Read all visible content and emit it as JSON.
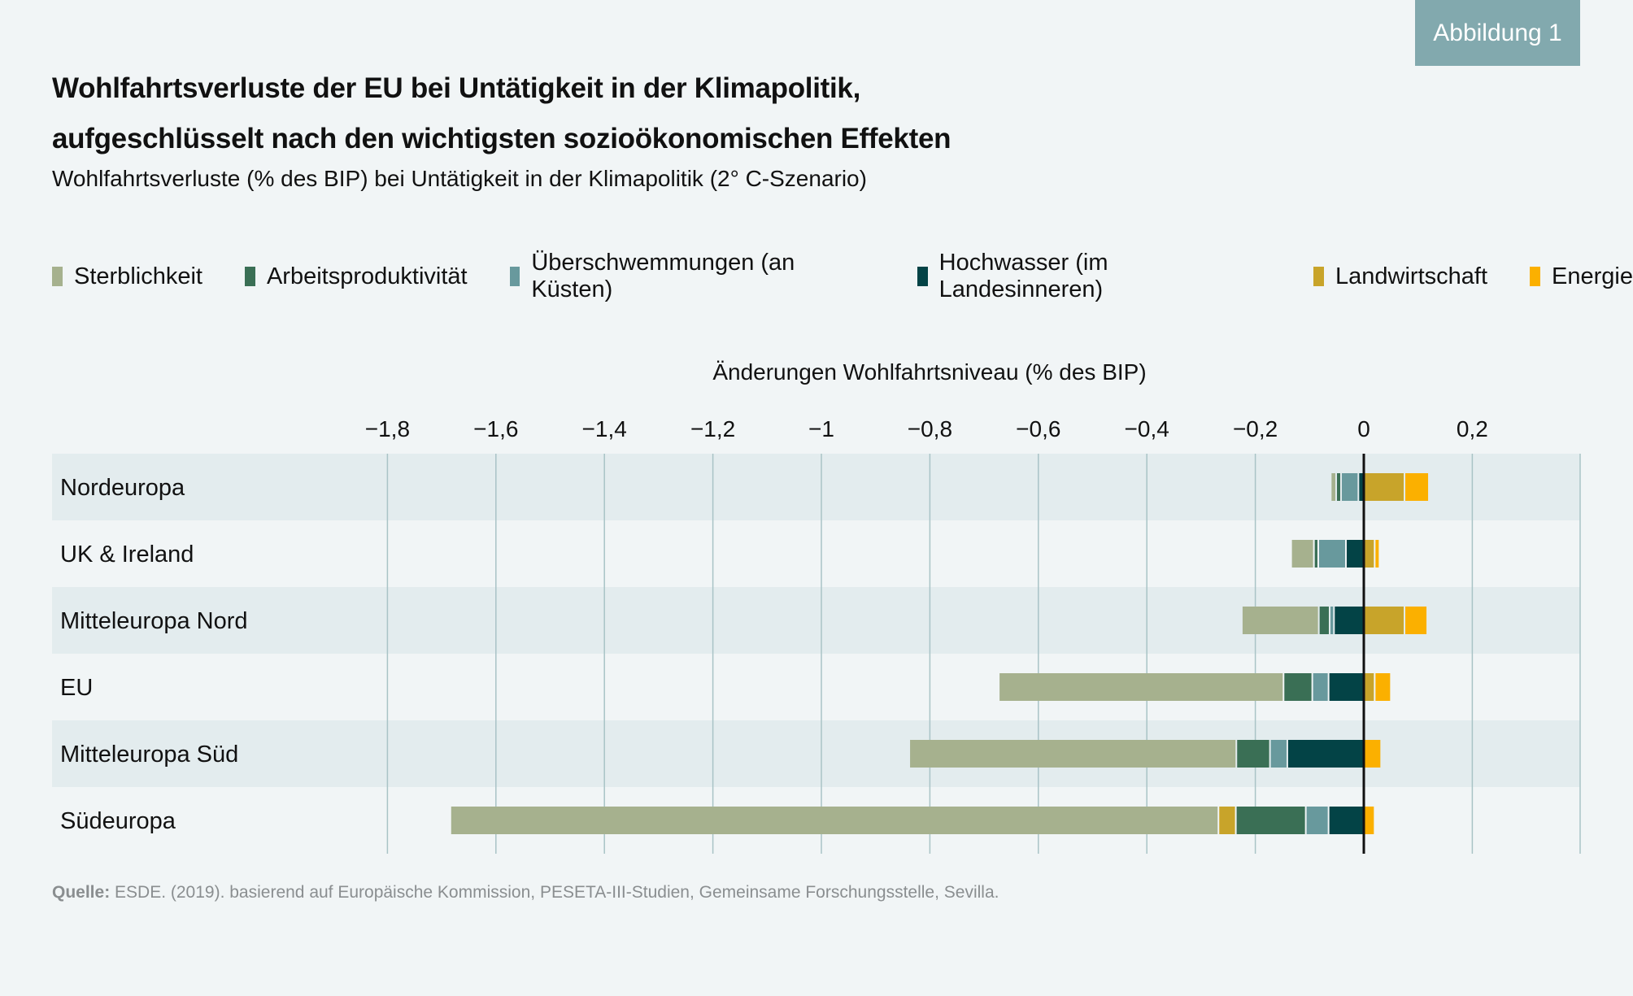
{
  "badge": "Abbildung 1",
  "title_line1": "Wohlfahrtsverluste der EU bei Untätigkeit in der Klimapolitik,",
  "title_line2": "aufgeschlüsselt nach den wichtigsten sozioökonomischen Effekten",
  "subtitle": "Wohlfahrtsverluste (% des BIP) bei Untätigkeit in der Klimapolitik (2° C-Szenario)",
  "source_label": "Quelle:",
  "source_text": " ESDE. (2019). basierend auf Europäische Kommission, PESETA-III-Studien, Gemeinsame Forschungsstelle, Sevilla.",
  "chart_data": {
    "type": "bar",
    "orientation": "horizontal",
    "stacked": true,
    "title": "Änderungen Wohlfahrtsniveau (% des BIP)",
    "xlabel": "Änderungen Wohlfahrtsniveau (% des BIP)",
    "ylabel": "",
    "xlim": [
      -2.0,
      0.4
    ],
    "xticks": [
      -1.8,
      -1.6,
      -1.4,
      -1.2,
      -1.0,
      -0.8,
      -0.6,
      -0.4,
      -0.2,
      0,
      0.2
    ],
    "xtick_labels": [
      "−1,8",
      "−1,6",
      "−1,4",
      "−1,2",
      "−1",
      "−0,8",
      "−0,6",
      "−0,4",
      "−0,2",
      "0",
      "0,2"
    ],
    "grid": true,
    "legend_position": "top",
    "categories": [
      "Nordeuropa",
      "UK & Ireland",
      "Mitteleuropa Nord",
      "EU",
      "Mitteleuropa Süd",
      "Südeuropa"
    ],
    "series": [
      {
        "name": "Sterblichkeit",
        "color": "#a6b18e",
        "values": [
          -0.01,
          -0.042,
          -0.142,
          -0.525,
          -0.603,
          -1.416
        ]
      },
      {
        "name": "Arbeitsproduktivität",
        "color": "#3a6f55",
        "values": [
          -0.009,
          -0.008,
          -0.02,
          -0.053,
          -0.062,
          -0.129
        ]
      },
      {
        "name": "Überschwemmungen (an Küsten)",
        "color": "#68999d",
        "values": [
          -0.032,
          -0.051,
          -0.008,
          -0.03,
          -0.032,
          -0.042
        ]
      },
      {
        "name": "Hochwasser (im Landesinneren)",
        "color": "#034346",
        "values": [
          -0.01,
          -0.033,
          -0.055,
          -0.065,
          -0.141,
          -0.065
        ]
      },
      {
        "name": "Landwirtschaft",
        "color": "#c8a42a",
        "values": [
          0.075,
          0.02,
          0.075,
          0.02,
          0.0,
          -0.032
        ]
      },
      {
        "name": "Energie",
        "color": "#fbb000",
        "values": [
          0.045,
          0.009,
          0.042,
          0.03,
          0.032,
          0.02
        ]
      }
    ],
    "negative_stack_order": [
      "Hochwasser (im Landesinneren)",
      "Überschwemmungen (an Küsten)",
      "Arbeitsproduktivität",
      "Landwirtschaft",
      "Sterblichkeit"
    ]
  }
}
